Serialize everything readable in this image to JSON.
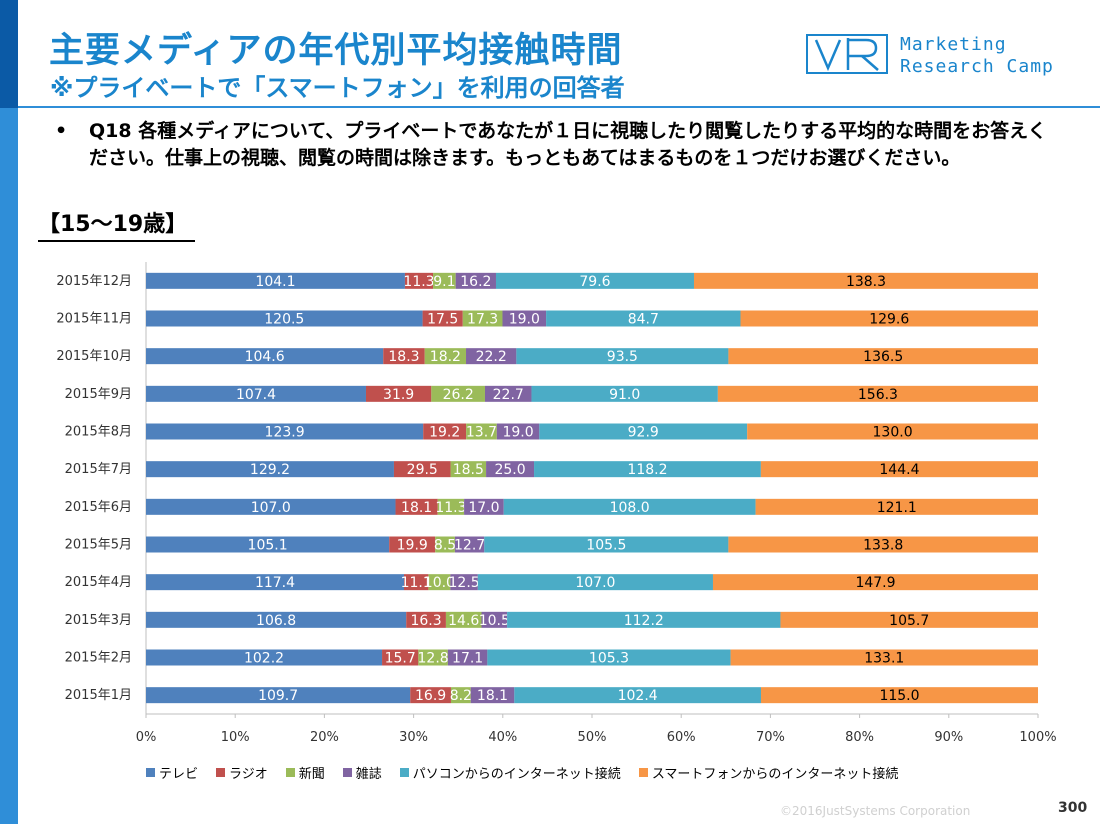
{
  "header": {
    "title": "主要メディアの年代別平均接触時間",
    "subtitle": "※プライベートで「スマートフォン」を利用の回答者"
  },
  "logo": {
    "line1": "Marketing",
    "line2": "Research Camp",
    "color": "#1a85cc"
  },
  "question": {
    "bullet": "•",
    "text": "Q18 各種メディアについて、プライベートであなたが１日に視聴したり閲覧したりする平均的な時間をお答えください。仕事上の視聴、閲覧の時間は除きます。もっともあてはまるものを１つだけお選びください。"
  },
  "section_label": "【15～19歳】",
  "footer": {
    "copyright": "©2016JustSystems Corporation",
    "page_number": "300"
  },
  "chart_data": {
    "type": "bar",
    "orientation": "horizontal",
    "stacking": "percent",
    "categories": [
      "2015年12月",
      "2015年11月",
      "2015年10月",
      "2015年9月",
      "2015年8月",
      "2015年7月",
      "2015年6月",
      "2015年5月",
      "2015年4月",
      "2015年3月",
      "2015年2月",
      "2015年1月"
    ],
    "series": [
      {
        "name": "テレビ",
        "color": "#4f81bd",
        "values": [
          104.1,
          120.5,
          104.6,
          107.4,
          123.9,
          129.2,
          107.0,
          105.1,
          117.4,
          106.8,
          102.2,
          109.7
        ],
        "labels": [
          "104.1",
          "120.5",
          "104.6",
          "107.4",
          "123.9",
          "129.2",
          "107.0",
          "105.1",
          "117.4",
          "106.8",
          "102.2",
          "109.7"
        ]
      },
      {
        "name": "ラジオ",
        "color": "#c0504d",
        "values": [
          11.3,
          17.5,
          18.3,
          31.9,
          19.2,
          29.5,
          18.1,
          19.9,
          11.1,
          16.3,
          15.7,
          16.9
        ],
        "labels": [
          "11.3",
          "17.5",
          "18.3",
          "31.9",
          "19.2",
          "29.5",
          "18.1",
          "19.9",
          "11.1",
          "16.3",
          "15.7",
          "16.9"
        ]
      },
      {
        "name": "新聞",
        "color": "#9bbb59",
        "values": [
          9.1,
          17.3,
          18.2,
          26.2,
          13.7,
          18.5,
          11.3,
          8.5,
          10.0,
          14.6,
          12.8,
          8.2
        ],
        "labels": [
          "9.1",
          "17.3",
          "18.2",
          "26.2",
          "13.7",
          "18.5",
          "11.3",
          "8.5",
          "10.0",
          "14.6",
          "12.8",
          "8.2"
        ]
      },
      {
        "name": "雑誌",
        "color": "#8064a2",
        "values": [
          16.2,
          19.0,
          22.2,
          22.7,
          19.0,
          25.0,
          17.0,
          12.7,
          12.5,
          10.5,
          17.1,
          18.1
        ],
        "labels": [
          "16.2",
          "19.0",
          "22.2",
          "22.7",
          "19.0",
          "25.0",
          "17.0",
          "12.7",
          "12.5",
          "10.5",
          "17.1",
          "18.1"
        ]
      },
      {
        "name": "パソコンからのインターネット接続",
        "color": "#4bacc6",
        "values": [
          79.6,
          84.7,
          93.5,
          91.0,
          92.9,
          118.2,
          108.0,
          105.5,
          107.0,
          112.2,
          105.3,
          102.4
        ],
        "labels": [
          "79.6",
          "84.7",
          "93.5",
          "91.0",
          "92.9",
          "118.2",
          "108.0",
          "105.5",
          "107.0",
          "112.2",
          "105.3",
          "102.4"
        ]
      },
      {
        "name": "スマートフォンからのインターネット接続",
        "color": "#f79646",
        "values": [
          138.3,
          129.6,
          136.5,
          156.3,
          130.0,
          144.4,
          121.1,
          133.8,
          147.9,
          105.7,
          133.1,
          115.0
        ],
        "labels": [
          "138.3",
          "129.6",
          "136.5",
          "156.3",
          "130.0",
          "144.4",
          "121.1",
          "133.8",
          "147.9",
          "105.7",
          "133.1",
          "115.0"
        ]
      }
    ],
    "x_ticks": [
      "0%",
      "10%",
      "20%",
      "30%",
      "40%",
      "50%",
      "60%",
      "70%",
      "80%",
      "90%",
      "100%"
    ],
    "xlim": [
      0,
      100
    ],
    "grid": false,
    "legend": "bottom"
  }
}
